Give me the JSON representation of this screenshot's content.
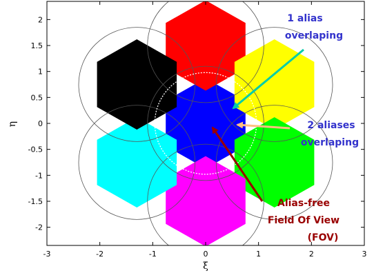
{
  "axes": {
    "xlabel": "ξ",
    "ylabel": "η",
    "xlim": [
      -3,
      3
    ],
    "ylim": [
      -2.35,
      2.35
    ],
    "xticks": [
      "-3",
      "-2",
      "-1",
      "0",
      "1",
      "2",
      "3"
    ],
    "yticks": [
      "2",
      "1.5",
      "1",
      "0.5",
      "0",
      "-0.5",
      "-1",
      "-1.5",
      "-2"
    ]
  },
  "hexagons": [
    {
      "name": "center",
      "cx": 0,
      "cy": 0,
      "color": "#0000ff"
    },
    {
      "name": "top",
      "cx": 0,
      "cy": 1.5,
      "color": "#ff0000"
    },
    {
      "name": "upper-right",
      "cx": 1.3,
      "cy": 0.75,
      "color": "#ffff00"
    },
    {
      "name": "lower-right",
      "cx": 1.3,
      "cy": -0.75,
      "color": "#00ff00"
    },
    {
      "name": "bottom",
      "cx": 0,
      "cy": -1.5,
      "color": "#ff00ff"
    },
    {
      "name": "lower-left",
      "cx": -1.3,
      "cy": -0.75,
      "color": "#00ffff"
    },
    {
      "name": "upper-left",
      "cx": -1.3,
      "cy": 0.75,
      "color": "#000000"
    }
  ],
  "hexagon_radius": 0.87,
  "alias_circle_radius": 1.1,
  "fov_circle_radius": 0.97,
  "annotations": {
    "one_alias": {
      "lines": [
        "1 alias",
        "overlaping"
      ],
      "color": "#3333cc",
      "arrow_color": "#00ccaa"
    },
    "two_aliases": {
      "lines": [
        "2 aliases",
        "overlaping"
      ],
      "color": "#3333cc",
      "arrow_color": "#ffc080"
    },
    "fov": {
      "lines": [
        "Alias-free",
        "Field Of View",
        "(FOV)"
      ],
      "color": "#990000",
      "arrow_color": "#990000"
    }
  }
}
